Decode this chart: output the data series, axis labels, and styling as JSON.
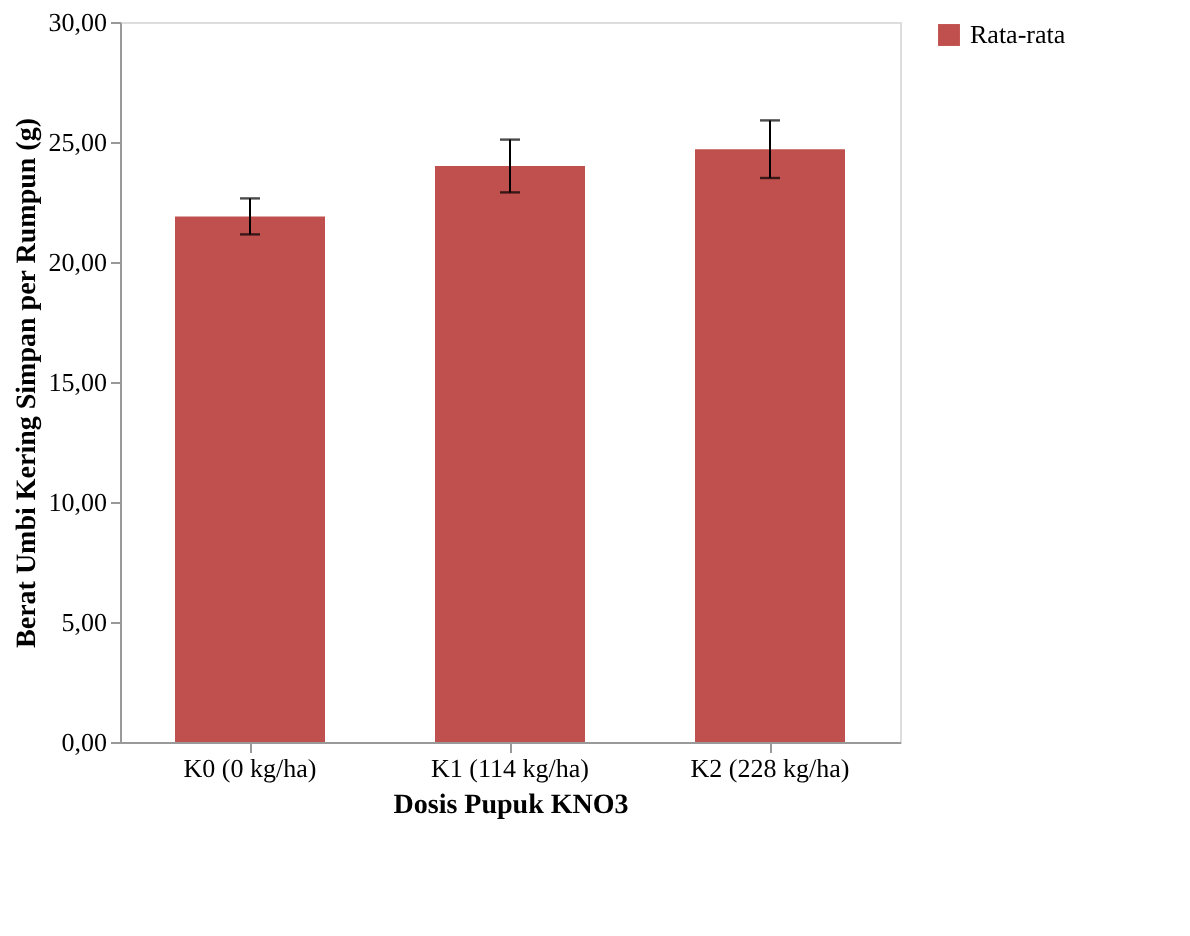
{
  "chart_data": {
    "type": "bar",
    "xlabel": "Dosis Pupuk KNO3",
    "ylabel": "Berat Umbi Kering Simpan per Rumpun (g)",
    "categories": [
      "K0 (0 kg/ha)",
      "K1 (114 kg/ha)",
      "K2 (228 kg/ha)"
    ],
    "series": [
      {
        "name": "Rata-rata",
        "color": "#c0504d",
        "values": [
          21.9,
          24.0,
          24.7
        ],
        "errors": [
          0.75,
          1.1,
          1.2
        ]
      }
    ],
    "ylim": [
      0,
      30
    ],
    "yticks": [
      {
        "value": 0,
        "label": "0,00"
      },
      {
        "value": 5,
        "label": "5,00"
      },
      {
        "value": 10,
        "label": "10,00"
      },
      {
        "value": 15,
        "label": "15,00"
      },
      {
        "value": 20,
        "label": "20,00"
      },
      {
        "value": 25,
        "label": "25,00"
      },
      {
        "value": 30,
        "label": "30,00"
      }
    ],
    "grid": false,
    "legend": "right"
  }
}
